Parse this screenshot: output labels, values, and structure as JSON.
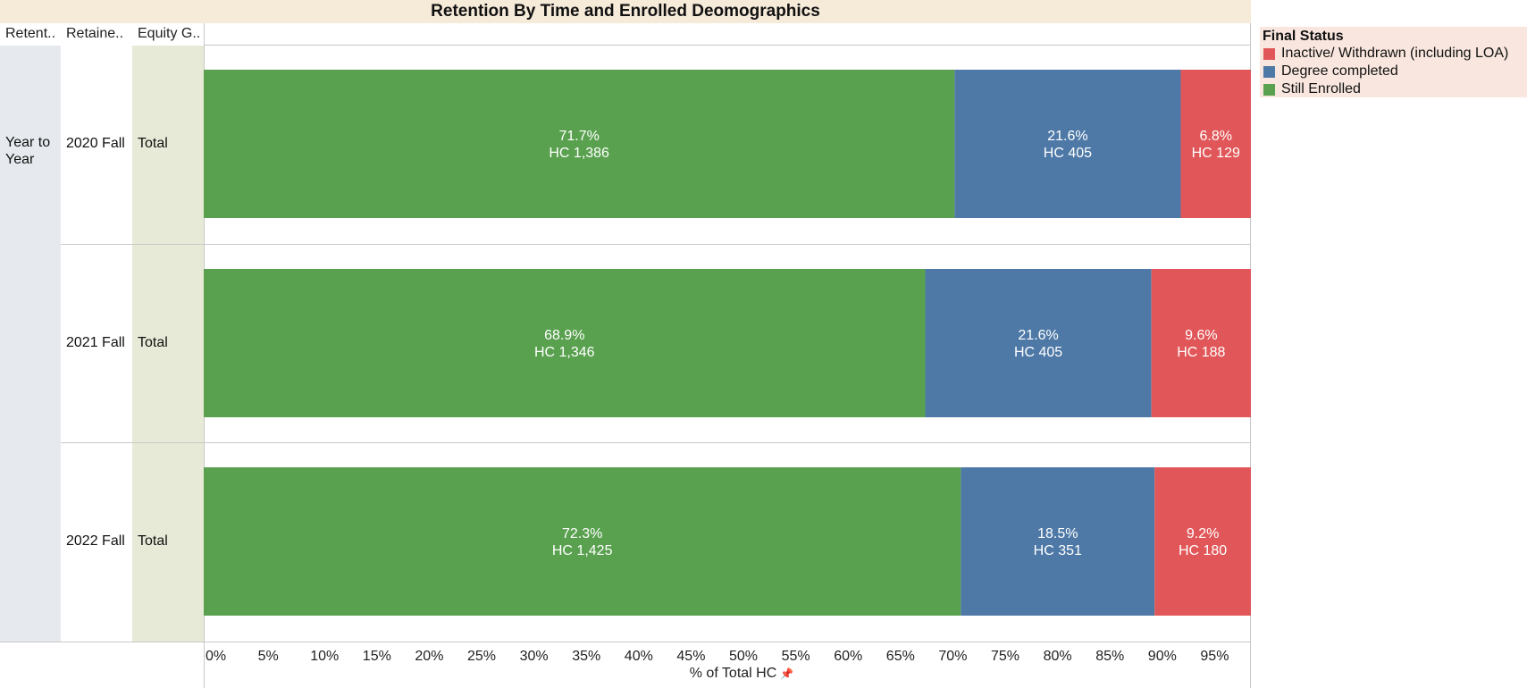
{
  "header": {
    "title": "Retention By Time and Enrolled Deomographics",
    "col1": "Retent..",
    "col2": "Retaine..",
    "col3": "Equity G.."
  },
  "rows": [
    {
      "group": "Year to Year",
      "term": "2020 Fall",
      "equity": "Total"
    },
    {
      "group": "",
      "term": "2021 Fall",
      "equity": "Total"
    },
    {
      "group": "",
      "term": "2022 Fall",
      "equity": "Total"
    }
  ],
  "legend": {
    "title": "Final Status",
    "items": [
      {
        "label": "Inactive/ Withdrawn (including LOA)",
        "color": "#e15759"
      },
      {
        "label": "Degree completed",
        "color": "#4e79a7"
      },
      {
        "label": "Still Enrolled",
        "color": "#59a14f"
      }
    ]
  },
  "axis": {
    "title": "% of Total HC",
    "pin_icon": "pin-icon"
  },
  "chart_data": {
    "type": "bar",
    "orientation": "horizontal",
    "stacked": true,
    "title": "Retention By Time and Enrolled Deomographics",
    "xlabel": "% of Total HC",
    "xlim": [
      0,
      100
    ],
    "x_ticks": [
      "0%",
      "5%",
      "10%",
      "15%",
      "20%",
      "25%",
      "30%",
      "35%",
      "40%",
      "45%",
      "50%",
      "55%",
      "60%",
      "65%",
      "70%",
      "75%",
      "80%",
      "85%",
      "90%",
      "95%"
    ],
    "categories": [
      "2020 Fall",
      "2021 Fall",
      "2022 Fall"
    ],
    "series": [
      {
        "name": "Still Enrolled",
        "color": "#59a14f",
        "values": [
          71.7,
          68.9,
          72.3
        ],
        "labels": [
          "71.7%",
          "68.9%",
          "72.3%"
        ],
        "hc_labels": [
          "HC 1,386",
          "HC 1,346",
          "HC 1,425"
        ]
      },
      {
        "name": "Degree completed",
        "color": "#4e79a7",
        "values": [
          21.6,
          21.6,
          18.5
        ],
        "labels": [
          "21.6%",
          "21.6%",
          "18.5%"
        ],
        "hc_labels": [
          "HC 405",
          "HC 405",
          "HC 351"
        ]
      },
      {
        "name": "Inactive/ Withdrawn (including LOA)",
        "color": "#e15759",
        "values": [
          6.8,
          9.6,
          9.2
        ],
        "labels": [
          "6.8%",
          "9.6%",
          "9.2%"
        ],
        "hc_labels": [
          "HC 129",
          "HC 188",
          "HC 180"
        ]
      }
    ],
    "legend_position": "right"
  }
}
